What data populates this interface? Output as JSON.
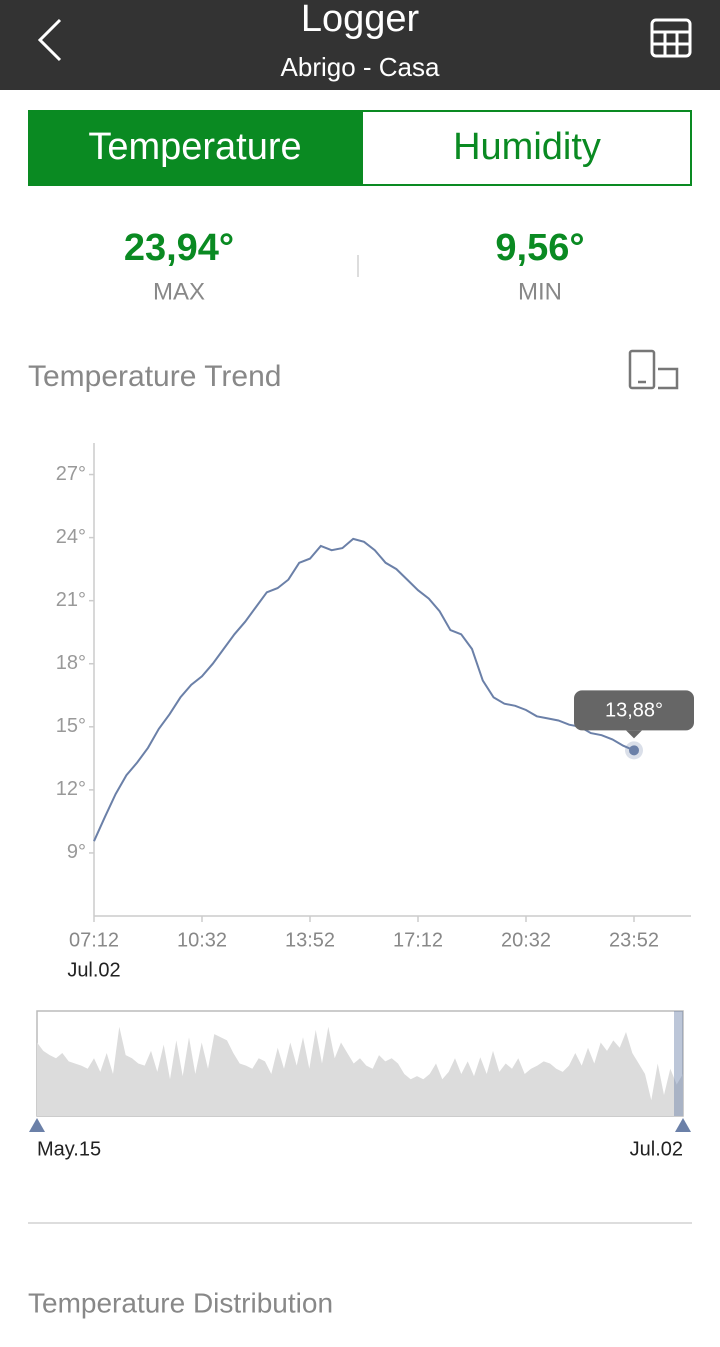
{
  "header": {
    "title": "Logger",
    "subtitle": "Abrigo - Casa"
  },
  "tabs": [
    "Temperature",
    "Humidity"
  ],
  "stats": [
    {
      "value": "23,94°",
      "label": "MAX"
    },
    {
      "value": "9,56°",
      "label": "MIN"
    }
  ],
  "distribution_title": "Temperature Distribution",
  "chart_data": [
    {
      "type": "line",
      "title": "Temperature Trend",
      "x": [
        "07:12",
        "07:32",
        "07:52",
        "08:12",
        "08:32",
        "08:52",
        "09:12",
        "09:32",
        "09:52",
        "10:12",
        "10:32",
        "10:52",
        "11:12",
        "11:32",
        "11:52",
        "12:12",
        "12:32",
        "12:52",
        "13:12",
        "13:32",
        "13:52",
        "14:12",
        "14:32",
        "14:52",
        "15:12",
        "15:32",
        "15:52",
        "16:12",
        "16:32",
        "16:52",
        "17:12",
        "17:32",
        "17:52",
        "18:12",
        "18:32",
        "18:52",
        "19:12",
        "19:32",
        "19:52",
        "20:12",
        "20:32",
        "20:52",
        "21:12",
        "21:32",
        "21:52",
        "22:12",
        "22:32",
        "22:52",
        "23:12",
        "23:32",
        "23:52"
      ],
      "date_label": "Jul.02",
      "series": [
        {
          "color": "#6b80a8",
          "values": [
            9.56,
            10.7,
            11.8,
            12.7,
            13.3,
            14.0,
            14.9,
            15.6,
            16.4,
            17.0,
            17.4,
            18.0,
            18.7,
            19.4,
            20.0,
            20.7,
            21.4,
            21.6,
            22.0,
            22.8,
            23.0,
            23.6,
            23.4,
            23.5,
            23.94,
            23.8,
            23.4,
            22.8,
            22.5,
            22.0,
            21.5,
            21.1,
            20.5,
            19.6,
            19.4,
            18.7,
            17.2,
            16.4,
            16.1,
            16.0,
            15.8,
            15.5,
            15.4,
            15.3,
            15.1,
            15.0,
            14.7,
            14.6,
            14.4,
            14.1,
            13.88
          ],
          "value_labels": [
            null,
            null,
            null,
            null,
            null,
            null,
            null,
            null,
            null,
            null,
            null,
            null,
            null,
            null,
            null,
            null,
            null,
            null,
            null,
            null,
            null,
            null,
            null,
            null,
            null,
            null,
            null,
            null,
            null,
            null,
            null,
            null,
            null,
            null,
            null,
            null,
            null,
            null,
            null,
            null,
            null,
            null,
            null,
            null,
            null,
            null,
            null,
            null,
            null,
            null,
            "13,88°"
          ]
        }
      ],
      "xticks": [
        "07:12",
        "10:32",
        "13:52",
        "17:12",
        "20:32",
        "23:52"
      ],
      "ylim": [
        6,
        28.5
      ],
      "yticks": [
        {
          "value": 9,
          "label": "9°"
        },
        {
          "value": 12,
          "label": "12°"
        },
        {
          "value": 15,
          "label": "15°"
        },
        {
          "value": 18,
          "label": "18°"
        },
        {
          "value": 21,
          "label": "21°"
        },
        {
          "value": 24,
          "label": "24°"
        },
        {
          "value": 27,
          "label": "27°"
        }
      ],
      "grid": false
    },
    {
      "type": "area",
      "color": "#dcdcdc",
      "range_start": "May.15",
      "range_end": "Jul.02",
      "values": [
        70,
        62,
        58,
        55,
        60,
        52,
        50,
        48,
        45,
        55,
        42,
        60,
        40,
        85,
        58,
        55,
        50,
        48,
        62,
        42,
        68,
        35,
        72,
        38,
        75,
        40,
        70,
        45,
        78,
        75,
        72,
        60,
        50,
        48,
        45,
        55,
        52,
        40,
        65,
        45,
        70,
        48,
        75,
        45,
        82,
        50,
        85,
        55,
        70,
        60,
        50,
        55,
        48,
        45,
        58,
        52,
        55,
        50,
        40,
        35,
        38,
        35,
        40,
        50,
        35,
        42,
        55,
        40,
        52,
        38,
        56,
        40,
        62,
        42,
        50,
        45,
        55,
        40,
        45,
        48,
        52,
        50,
        45,
        42,
        48,
        60,
        48,
        65,
        50,
        70,
        62,
        72,
        65,
        80,
        60,
        50,
        40,
        15,
        50,
        20,
        45,
        30,
        40
      ]
    }
  ]
}
